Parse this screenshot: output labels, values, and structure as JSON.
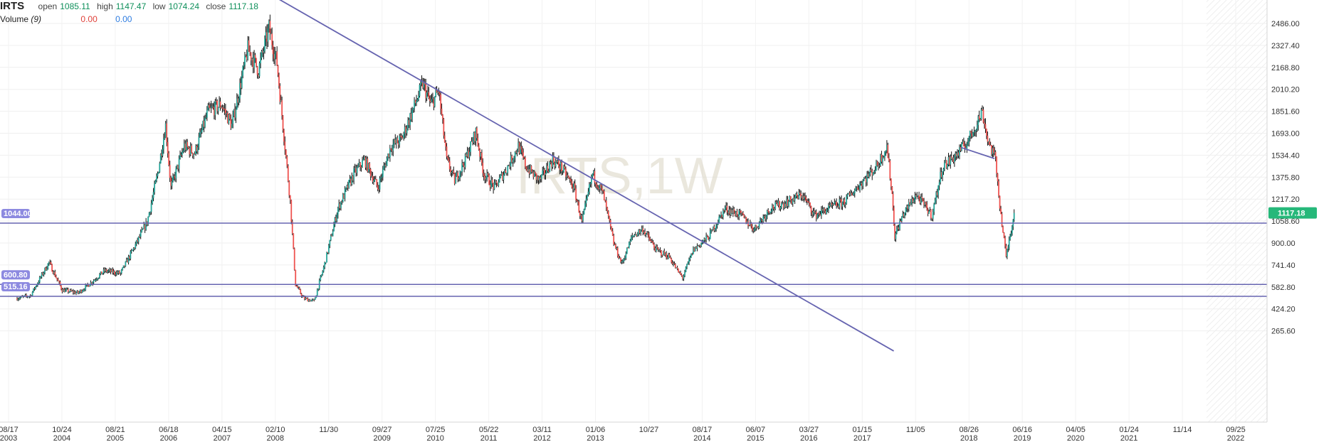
{
  "header": {
    "symbol": "IRTS",
    "open_label": "open",
    "open_value": "1085.11",
    "high_label": "high",
    "high_value": "1147.47",
    "low_label": "low",
    "low_value": "1074.24",
    "close_label": "close",
    "close_value": "1117.18",
    "volume_label": "Volume",
    "volume_period": "(9)",
    "volume_value_1": "0.00",
    "volume_value_2": "0.00"
  },
  "watermark": "IRTS,1W",
  "colors": {
    "up": "#26a69a",
    "down": "#ef5350",
    "line": "#6664b0",
    "tag": "#8d8ae0",
    "last_price": "#26b87a"
  },
  "chart_data": {
    "type": "candlestick",
    "title": "IRTS",
    "interval": "1W",
    "ylim": [
      160,
      2560
    ],
    "y_ticks": [
      "2486.00",
      "2327.40",
      "2168.80",
      "2010.20",
      "1851.60",
      "1693.00",
      "1534.40",
      "1375.80",
      "1217.20",
      "1058.60",
      "900.00",
      "741.40",
      "582.80",
      "424.20",
      "265.60"
    ],
    "x_ticks": [
      {
        "date": "08/17",
        "year": "2003"
      },
      {
        "date": "10/24",
        "year": "2004"
      },
      {
        "date": "08/21",
        "year": "2005"
      },
      {
        "date": "06/18",
        "year": "2006"
      },
      {
        "date": "04/15",
        "year": "2007"
      },
      {
        "date": "02/10",
        "year": "2008"
      },
      {
        "date": "11/30",
        "year": ""
      },
      {
        "date": "09/27",
        "year": "2009"
      },
      {
        "date": "07/25",
        "year": "2010"
      },
      {
        "date": "05/22",
        "year": "2011"
      },
      {
        "date": "03/11",
        "year": "2012"
      },
      {
        "date": "01/06",
        "year": "2013"
      },
      {
        "date": "10/27",
        "year": ""
      },
      {
        "date": "08/17",
        "year": "2014"
      },
      {
        "date": "06/07",
        "year": "2015"
      },
      {
        "date": "03/27",
        "year": "2016"
      },
      {
        "date": "01/15",
        "year": "2017"
      },
      {
        "date": "11/05",
        "year": ""
      },
      {
        "date": "08/26",
        "year": "2018"
      },
      {
        "date": "06/16",
        "year": "2019"
      },
      {
        "date": "04/05",
        "year": "2020"
      },
      {
        "date": "01/24",
        "year": "2021"
      },
      {
        "date": "11/14",
        "year": ""
      },
      {
        "date": "09/25",
        "year": "2022"
      }
    ],
    "price_path": [
      [
        2003.63,
        500
      ],
      [
        2003.9,
        520
      ],
      [
        2004.25,
        760
      ],
      [
        2004.5,
        560
      ],
      [
        2004.8,
        540
      ],
      [
        2005.0,
        600
      ],
      [
        2005.3,
        700
      ],
      [
        2005.6,
        680
      ],
      [
        2005.9,
        900
      ],
      [
        2006.1,
        1050
      ],
      [
        2006.3,
        1400
      ],
      [
        2006.45,
        1750
      ],
      [
        2006.55,
        1300
      ],
      [
        2006.8,
        1600
      ],
      [
        2007.0,
        1550
      ],
      [
        2007.25,
        1850
      ],
      [
        2007.5,
        1900
      ],
      [
        2007.7,
        1750
      ],
      [
        2008.0,
        2300
      ],
      [
        2008.2,
        2150
      ],
      [
        2008.4,
        2450
      ],
      [
        2008.55,
        2200
      ],
      [
        2008.7,
        1600
      ],
      [
        2008.8,
        1200
      ],
      [
        2008.9,
        600
      ],
      [
        2009.05,
        500
      ],
      [
        2009.25,
        480
      ],
      [
        2009.45,
        750
      ],
      [
        2009.7,
        1150
      ],
      [
        2010.0,
        1400
      ],
      [
        2010.2,
        1500
      ],
      [
        2010.45,
        1300
      ],
      [
        2010.7,
        1600
      ],
      [
        2010.9,
        1650
      ],
      [
        2011.1,
        1850
      ],
      [
        2011.3,
        2050
      ],
      [
        2011.45,
        1900
      ],
      [
        2011.6,
        2000
      ],
      [
        2011.75,
        1500
      ],
      [
        2011.9,
        1350
      ],
      [
        2012.1,
        1500
      ],
      [
        2012.3,
        1700
      ],
      [
        2012.45,
        1400
      ],
      [
        2012.65,
        1300
      ],
      [
        2012.9,
        1450
      ],
      [
        2013.1,
        1600
      ],
      [
        2013.25,
        1450
      ],
      [
        2013.5,
        1350
      ],
      [
        2013.75,
        1500
      ],
      [
        2013.9,
        1450
      ],
      [
        2014.15,
        1300
      ],
      [
        2014.3,
        1050
      ],
      [
        2014.5,
        1400
      ],
      [
        2014.7,
        1250
      ],
      [
        2014.9,
        900
      ],
      [
        2015.05,
        750
      ],
      [
        2015.25,
        950
      ],
      [
        2015.45,
        1000
      ],
      [
        2015.7,
        850
      ],
      [
        2015.95,
        800
      ],
      [
        2016.1,
        700
      ],
      [
        2016.2,
        650
      ],
      [
        2016.4,
        850
      ],
      [
        2016.7,
        950
      ],
      [
        2017.0,
        1150
      ],
      [
        2017.3,
        1100
      ],
      [
        2017.55,
        1000
      ],
      [
        2017.85,
        1150
      ],
      [
        2018.2,
        1200
      ],
      [
        2018.45,
        1250
      ],
      [
        2018.7,
        1100
      ],
      [
        2018.95,
        1150
      ],
      [
        2019.25,
        1200
      ],
      [
        2019.6,
        1350
      ],
      [
        2019.85,
        1450
      ],
      [
        2020.05,
        1600
      ],
      [
        2020.15,
        1250
      ],
      [
        2020.2,
        950
      ],
      [
        2020.35,
        1100
      ],
      [
        2020.6,
        1250
      ],
      [
        2020.9,
        1100
      ],
      [
        2021.1,
        1450
      ],
      [
        2021.4,
        1550
      ],
      [
        2021.6,
        1650
      ],
      [
        2021.85,
        1850
      ],
      [
        2021.95,
        1650
      ],
      [
        2022.1,
        1500
      ],
      [
        2022.2,
        1100
      ],
      [
        2022.3,
        800
      ],
      [
        2022.45,
        1117.18
      ]
    ],
    "horizontal_levels": [
      {
        "label": "1044.00",
        "value": 1044.0
      },
      {
        "label": "600.80",
        "value": 600.8
      },
      {
        "label": "515.16",
        "value": 515.16
      }
    ],
    "trendlines": [
      {
        "from": [
          2008.5,
          2680
        ],
        "to": [
          2020.18,
          120
        ]
      },
      {
        "from": [
          2021.45,
          1590
        ],
        "to": [
          2022.08,
          1510
        ]
      }
    ],
    "last_price": "1117.18"
  }
}
